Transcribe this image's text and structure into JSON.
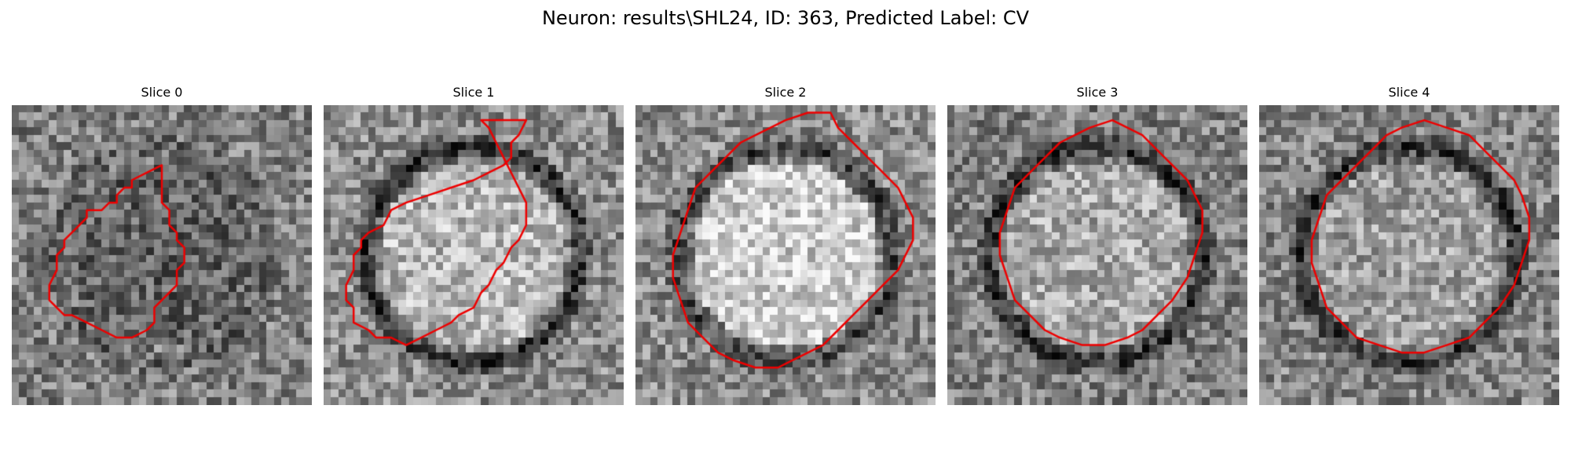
{
  "figure": {
    "title": "Neuron: results\\SHL24, ID: 363, Predicted Label: CV"
  },
  "panels": [
    {
      "title": "Slice 0",
      "image_seed": 11,
      "inside_brightness": 0.38,
      "outside_brightness": 0.5,
      "ring_darkness": 0.15,
      "outline_color": "#ee0000",
      "contour": [
        [
          20,
          8
        ],
        [
          18,
          9
        ],
        [
          16,
          10
        ],
        [
          16,
          11
        ],
        [
          15,
          11
        ],
        [
          14,
          12
        ],
        [
          14,
          13
        ],
        [
          13,
          13
        ],
        [
          12,
          14
        ],
        [
          10,
          14
        ],
        [
          10,
          15
        ],
        [
          9,
          16
        ],
        [
          8,
          17
        ],
        [
          7,
          18
        ],
        [
          7,
          19
        ],
        [
          6,
          20
        ],
        [
          6,
          22
        ],
        [
          5,
          24
        ],
        [
          5,
          26
        ],
        [
          6,
          27
        ],
        [
          7,
          28
        ],
        [
          8,
          28
        ],
        [
          10,
          29
        ],
        [
          12,
          30
        ],
        [
          14,
          31
        ],
        [
          16,
          31
        ],
        [
          18,
          30
        ],
        [
          19,
          29
        ],
        [
          19,
          27
        ],
        [
          20,
          26
        ],
        [
          21,
          25
        ],
        [
          22,
          24
        ],
        [
          22,
          22
        ],
        [
          23,
          21
        ],
        [
          23,
          19
        ],
        [
          22,
          18
        ],
        [
          22,
          17
        ],
        [
          21,
          16
        ],
        [
          21,
          14
        ],
        [
          20,
          13
        ],
        [
          20,
          11
        ],
        [
          20,
          9
        ]
      ]
    },
    {
      "title": "Slice 1",
      "image_seed": 23,
      "inside_brightness": 0.72,
      "outside_brightness": 0.55,
      "ring_darkness": 0.45,
      "outline_color": "#ee0000",
      "contour": [
        [
          27,
          2
        ],
        [
          26,
          4
        ],
        [
          25,
          5
        ],
        [
          25,
          7
        ],
        [
          24,
          8
        ],
        [
          22,
          9
        ],
        [
          20,
          10
        ],
        [
          17,
          11
        ],
        [
          14,
          12
        ],
        [
          11,
          13
        ],
        [
          9,
          14
        ],
        [
          8,
          16
        ],
        [
          6,
          17
        ],
        [
          5,
          18
        ],
        [
          5,
          19
        ],
        [
          4,
          20
        ],
        [
          4,
          22
        ],
        [
          3,
          24
        ],
        [
          3,
          26
        ],
        [
          4,
          27
        ],
        [
          4,
          29
        ],
        [
          6,
          30
        ],
        [
          7,
          31
        ],
        [
          9,
          31
        ],
        [
          11,
          32
        ],
        [
          13,
          31
        ],
        [
          15,
          30
        ],
        [
          17,
          29
        ],
        [
          18,
          28
        ],
        [
          20,
          27
        ],
        [
          21,
          25
        ],
        [
          22,
          24
        ],
        [
          23,
          22
        ],
        [
          24,
          21
        ],
        [
          25,
          19
        ],
        [
          26,
          18
        ],
        [
          27,
          16
        ],
        [
          27,
          13
        ],
        [
          26,
          11
        ],
        [
          25,
          9
        ],
        [
          24,
          7
        ],
        [
          23,
          5
        ],
        [
          22,
          3
        ],
        [
          21,
          2
        ]
      ]
    },
    {
      "title": "Slice 2",
      "image_seed": 37,
      "inside_brightness": 0.8,
      "outside_brightness": 0.55,
      "ring_darkness": 0.35,
      "outline_color": "#ee0000",
      "contour": [
        [
          26,
          1
        ],
        [
          27,
          3
        ],
        [
          29,
          5
        ],
        [
          31,
          7
        ],
        [
          33,
          9
        ],
        [
          35,
          11
        ],
        [
          36,
          13
        ],
        [
          37,
          15
        ],
        [
          37,
          18
        ],
        [
          36,
          20
        ],
        [
          35,
          22
        ],
        [
          33,
          24
        ],
        [
          31,
          26
        ],
        [
          29,
          28
        ],
        [
          27,
          30
        ],
        [
          25,
          32
        ],
        [
          23,
          33
        ],
        [
          21,
          34
        ],
        [
          19,
          35
        ],
        [
          16,
          35
        ],
        [
          13,
          34
        ],
        [
          11,
          33
        ],
        [
          9,
          31
        ],
        [
          7,
          29
        ],
        [
          6,
          26
        ],
        [
          5,
          23
        ],
        [
          5,
          20
        ],
        [
          6,
          17
        ],
        [
          7,
          14
        ],
        [
          8,
          11
        ],
        [
          10,
          9
        ],
        [
          12,
          7
        ],
        [
          14,
          5
        ],
        [
          16,
          4
        ],
        [
          18,
          3
        ],
        [
          20,
          2
        ],
        [
          23,
          1
        ]
      ]
    },
    {
      "title": "Slice 3",
      "image_seed": 41,
      "inside_brightness": 0.66,
      "outside_brightness": 0.5,
      "ring_darkness": 0.4,
      "outline_color": "#ee0000",
      "contour": [
        [
          22,
          2
        ],
        [
          24,
          3
        ],
        [
          26,
          4
        ],
        [
          28,
          6
        ],
        [
          30,
          8
        ],
        [
          32,
          10
        ],
        [
          33,
          12
        ],
        [
          34,
          14
        ],
        [
          34,
          17
        ],
        [
          33,
          20
        ],
        [
          32,
          23
        ],
        [
          30,
          26
        ],
        [
          28,
          28
        ],
        [
          26,
          30
        ],
        [
          24,
          31
        ],
        [
          21,
          32
        ],
        [
          18,
          32
        ],
        [
          15,
          31
        ],
        [
          13,
          30
        ],
        [
          11,
          28
        ],
        [
          9,
          26
        ],
        [
          8,
          23
        ],
        [
          7,
          20
        ],
        [
          7,
          17
        ],
        [
          8,
          14
        ],
        [
          9,
          11
        ],
        [
          11,
          9
        ],
        [
          13,
          7
        ],
        [
          15,
          5
        ],
        [
          17,
          4
        ],
        [
          19,
          3
        ]
      ]
    },
    {
      "title": "Slice 4",
      "image_seed": 53,
      "inside_brightness": 0.62,
      "outside_brightness": 0.52,
      "ring_darkness": 0.42,
      "outline_color": "#ee0000",
      "contour": [
        [
          22,
          2
        ],
        [
          25,
          3
        ],
        [
          28,
          4
        ],
        [
          30,
          6
        ],
        [
          32,
          8
        ],
        [
          34,
          10
        ],
        [
          35,
          12
        ],
        [
          36,
          15
        ],
        [
          36,
          18
        ],
        [
          35,
          21
        ],
        [
          34,
          24
        ],
        [
          32,
          27
        ],
        [
          30,
          29
        ],
        [
          28,
          31
        ],
        [
          25,
          32
        ],
        [
          22,
          33
        ],
        [
          19,
          33
        ],
        [
          16,
          32
        ],
        [
          13,
          31
        ],
        [
          11,
          29
        ],
        [
          9,
          27
        ],
        [
          8,
          24
        ],
        [
          7,
          21
        ],
        [
          7,
          18
        ],
        [
          8,
          15
        ],
        [
          9,
          12
        ],
        [
          11,
          10
        ],
        [
          13,
          8
        ],
        [
          15,
          6
        ],
        [
          17,
          4
        ],
        [
          19,
          3
        ]
      ]
    }
  ]
}
